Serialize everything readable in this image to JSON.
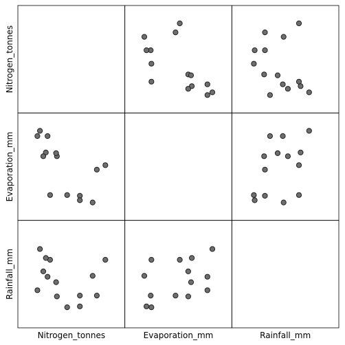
{
  "chart_data": {
    "type": "scatter",
    "variables": [
      "Nitrogen_tonnes",
      "Evaporation_mm",
      "Rainfall_mm"
    ],
    "observations": [
      {
        "Nitrogen_tonnes": 16.5,
        "Evaporation_mm": 2.2,
        "Rainfall_mm": 3.3
      },
      {
        "Nitrogen_tonnes": 18.0,
        "Evaporation_mm": 2.1,
        "Rainfall_mm": 4.6
      },
      {
        "Nitrogen_tonnes": 20.0,
        "Evaporation_mm": 5.6,
        "Rainfall_mm": 4.6
      },
      {
        "Nitrogen_tonnes": 19.5,
        "Evaporation_mm": 1.2,
        "Rainfall_mm": 6.8
      },
      {
        "Nitrogen_tonnes": 21.0,
        "Evaporation_mm": 6.2,
        "Rainfall_mm": 8.6
      },
      {
        "Nitrogen_tonnes": 14.5,
        "Evaporation_mm": 2.2,
        "Rainfall_mm": 8.6
      },
      {
        "Nitrogen_tonnes": 18.0,
        "Evaporation_mm": 1.5,
        "Rainfall_mm": 3.4
      },
      {
        "Nitrogen_tonnes": 15.3,
        "Evaporation_mm": 7.4,
        "Rainfall_mm": 4.5
      },
      {
        "Nitrogen_tonnes": 15.2,
        "Evaporation_mm": 7.8,
        "Rainfall_mm": 6.1
      },
      {
        "Nitrogen_tonnes": 14.0,
        "Evaporation_mm": 7.9,
        "Rainfall_mm": 8.8
      },
      {
        "Nitrogen_tonnes": 13.7,
        "Evaporation_mm": 7.4,
        "Rainfall_mm": 7.3
      },
      {
        "Nitrogen_tonnes": 13.0,
        "Evaporation_mm": 10.1,
        "Rainfall_mm": 5.2
      },
      {
        "Nitrogen_tonnes": 14.2,
        "Evaporation_mm": 10.1,
        "Rainfall_mm": 6.7
      },
      {
        "Nitrogen_tonnes": 13.3,
        "Evaporation_mm": 10.8,
        "Rainfall_mm": 9.8
      }
    ],
    "ranges": {
      "Nitrogen_tonnes": [
        12,
        22
      ],
      "Evaporation_mm": [
        0,
        12
      ],
      "Rainfall_mm": [
        2,
        12
      ]
    },
    "diagonal_cells": "empty",
    "grid": false,
    "legend": "none"
  }
}
